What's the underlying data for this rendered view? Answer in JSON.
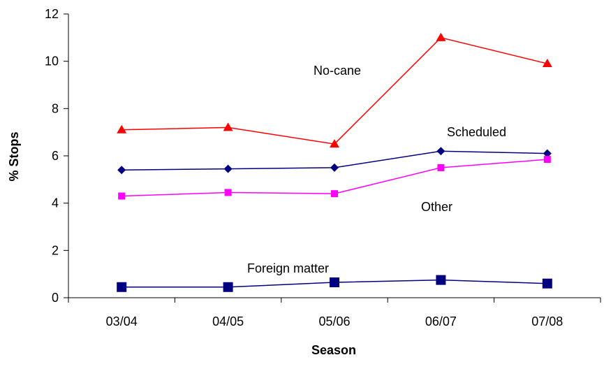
{
  "chart_data": {
    "type": "line",
    "title": "",
    "xlabel": "Season",
    "ylabel": "% Stops",
    "categories": [
      "03/04",
      "04/05",
      "05/06",
      "06/07",
      "07/08"
    ],
    "ylim": [
      0,
      12
    ],
    "yticks": [
      0,
      2,
      4,
      6,
      8,
      10,
      12
    ],
    "grid": false,
    "legend": "none",
    "series": [
      {
        "name": "No-cane",
        "color": "#ff0000",
        "marker": "triangle",
        "values": [
          7.1,
          7.2,
          6.5,
          11.0,
          9.9
        ]
      },
      {
        "name": "Scheduled",
        "color": "#000080",
        "marker": "diamond",
        "values": [
          5.4,
          5.45,
          5.5,
          6.2,
          6.1
        ]
      },
      {
        "name": "Other",
        "color": "#ff00ff",
        "marker": "square",
        "values": [
          4.3,
          4.45,
          4.4,
          5.5,
          5.85
        ]
      },
      {
        "name": "Foreign matter",
        "color": "#000080",
        "marker": "square-large",
        "values": [
          0.45,
          0.45,
          0.65,
          0.75,
          0.6
        ]
      }
    ]
  }
}
